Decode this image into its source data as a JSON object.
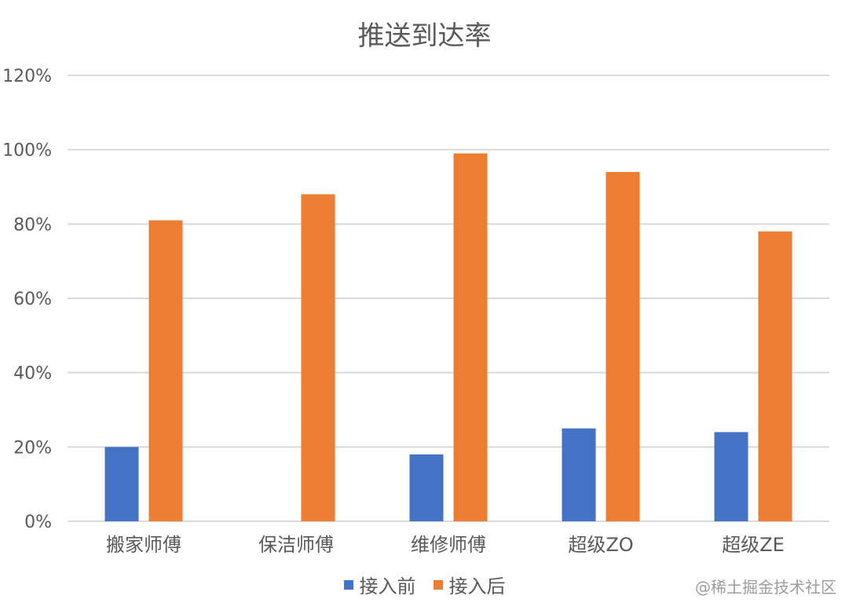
{
  "chart_data": {
    "type": "bar",
    "title": "推送到达率",
    "categories": [
      "搬家师傅",
      "保洁师傅",
      "维修师傅",
      "超级ZO",
      "超级ZE"
    ],
    "series": [
      {
        "name": "接入前",
        "color": "#4472C4",
        "values": [
          0.2,
          0,
          0.18,
          0.25,
          0.24
        ]
      },
      {
        "name": "接入后",
        "color": "#ED7D31",
        "values": [
          0.81,
          0.88,
          0.99,
          0.94,
          0.78
        ]
      }
    ],
    "ylim": [
      0,
      1.2
    ],
    "yticks": [
      "0%",
      "20%",
      "40%",
      "60%",
      "80%",
      "100%",
      "120%"
    ],
    "legend_position": "bottom",
    "grid": true
  },
  "watermark": {
    "text": "@稀土掘金技术社区"
  }
}
